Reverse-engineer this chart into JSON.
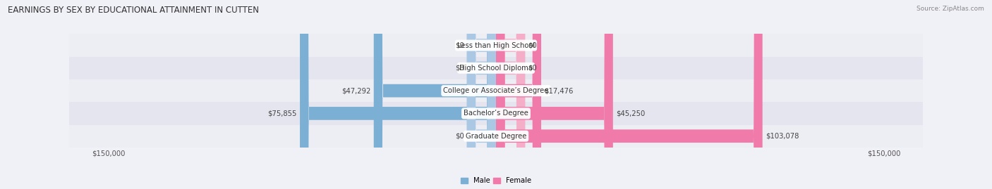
{
  "title": "EARNINGS BY SEX BY EDUCATIONAL ATTAINMENT IN CUTTEN",
  "source": "Source: ZipAtlas.com",
  "categories": [
    "Less than High School",
    "High School Diploma",
    "College or Associate’s Degree",
    "Bachelor’s Degree",
    "Graduate Degree"
  ],
  "male_values": [
    0,
    0,
    47292,
    75855,
    0
  ],
  "female_values": [
    0,
    0,
    17476,
    45250,
    103078
  ],
  "male_color": "#7bafd4",
  "female_color": "#f07aaa",
  "male_color_light": "#aac8e4",
  "female_color_light": "#f5aec8",
  "max_val": 150000,
  "bar_height": 0.58,
  "bg_color": "#f0f0f7",
  "row_color_a": "#ededf4",
  "row_color_b": "#e5e5ef",
  "legend_male_color": "#7bafd4",
  "legend_female_color": "#f07aaa",
  "title_fontsize": 8.5,
  "label_fontsize": 7.2,
  "axis_label_fontsize": 7.2,
  "category_fontsize": 7.2,
  "source_fontsize": 6.5
}
